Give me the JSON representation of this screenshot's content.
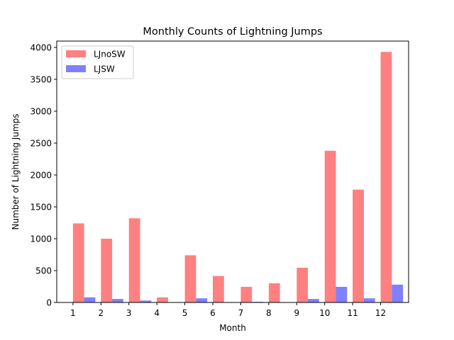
{
  "chart_data": {
    "type": "bar",
    "title": "Monthly Counts of Lightning Jumps",
    "xlabel": "Month",
    "ylabel": "Number of Lightning Jumps",
    "categories": [
      "1",
      "2",
      "3",
      "4",
      "5",
      "6",
      "7",
      "8",
      "9",
      "10",
      "11",
      "12"
    ],
    "ylim": [
      0,
      4100
    ],
    "yticks": [
      0,
      500,
      1000,
      1500,
      2000,
      2500,
      3000,
      3500,
      4000
    ],
    "grid": false,
    "legend_position": "top-left",
    "series": [
      {
        "name": "LJnoSW",
        "color": "#ff8080",
        "values": [
          1240,
          1000,
          1320,
          80,
          740,
          415,
          245,
          300,
          545,
          2380,
          1770,
          3930
        ]
      },
      {
        "name": "LJSW",
        "color": "#8080ff",
        "values": [
          80,
          55,
          30,
          0,
          65,
          0,
          10,
          0,
          55,
          245,
          65,
          280
        ]
      }
    ]
  }
}
